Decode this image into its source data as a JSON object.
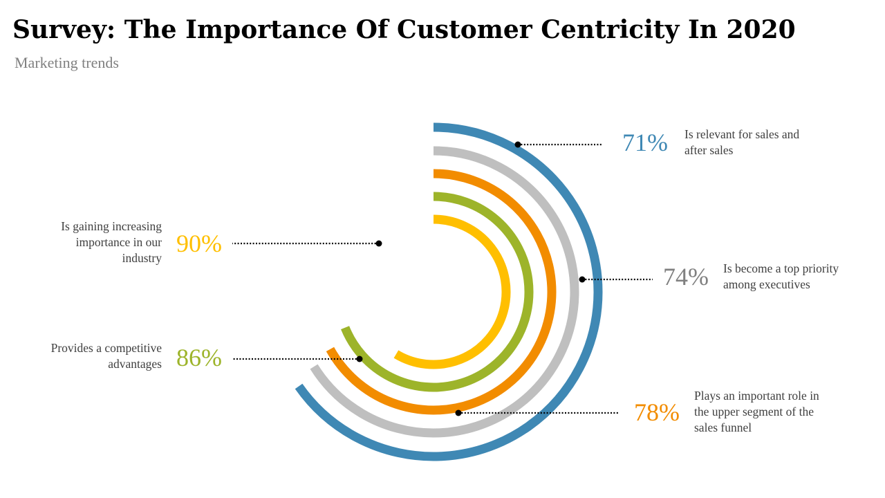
{
  "title": "Survey: The Importance Of Customer Centricity In 2020",
  "subtitle": "Marketing trends",
  "chart_data": {
    "type": "radial-bar",
    "series": [
      {
        "value": "71%",
        "label": "Is relevant for sales and after sales",
        "color": "#3F88B4"
      },
      {
        "value": "74%",
        "label": "Is become a top priority among executives",
        "color": "#BFBFBF"
      },
      {
        "value": "78%",
        "label": "Plays an important role in the upper segment of the sales funnel",
        "color": "#F28C00"
      },
      {
        "value": "86%",
        "label": "Provides a competitive advantages",
        "color": "#9DB42A"
      },
      {
        "value": "90%",
        "label": "Is gaining increasing importance in our industry",
        "color": "#FFBF00"
      }
    ],
    "pct_colors": [
      "#3F88B4",
      "#808080",
      "#F28C00",
      "#9DB42A",
      "#FFBF00"
    ]
  }
}
